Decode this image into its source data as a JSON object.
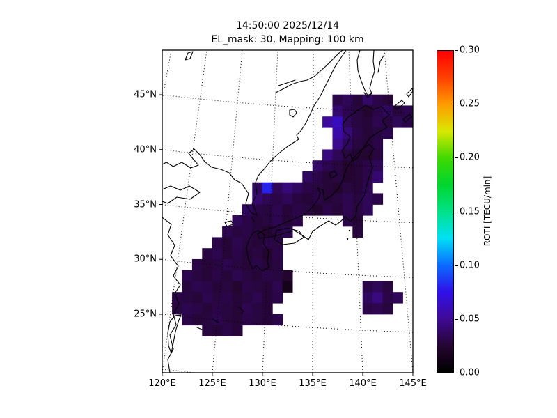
{
  "figure": {
    "title": "14:50:00 2025/12/14",
    "subtitle": "EL_mask: 30, Mapping: 100 km"
  },
  "axes": {
    "x_ticks": [
      {
        "lon": 120,
        "label": "120°E"
      },
      {
        "lon": 125,
        "label": "125°E"
      },
      {
        "lon": 130,
        "label": "130°E"
      },
      {
        "lon": 135,
        "label": "135°E"
      },
      {
        "lon": 140,
        "label": "140°E"
      },
      {
        "lon": 145,
        "label": "145°E"
      }
    ],
    "y_ticks": [
      {
        "lat": 25,
        "label": "25°N"
      },
      {
        "lat": 30,
        "label": "30°N"
      },
      {
        "lat": 35,
        "label": "35°N"
      },
      {
        "lat": 40,
        "label": "40°N"
      },
      {
        "lat": 45,
        "label": "45°N"
      }
    ],
    "grid_lons": [
      115,
      120,
      125,
      130,
      135,
      140,
      145
    ],
    "grid_lats": [
      20,
      25,
      30,
      35,
      40,
      45
    ]
  },
  "colorbar": {
    "label": "ROTI [TECU/min]",
    "vmin": 0.0,
    "vmax": 0.3,
    "ticks": [
      {
        "value": 0.0,
        "label": "0.00"
      },
      {
        "value": 0.05,
        "label": "0.05"
      },
      {
        "value": 0.1,
        "label": "0.10"
      },
      {
        "value": 0.15,
        "label": "0.15"
      },
      {
        "value": 0.2,
        "label": "0.20"
      },
      {
        "value": 0.25,
        "label": "0.25"
      },
      {
        "value": 0.3,
        "label": "0.30"
      }
    ],
    "stops": [
      [
        0.0,
        "#000000"
      ],
      [
        0.024,
        "#240530"
      ],
      [
        0.05,
        "#3f0a96"
      ],
      [
        0.075,
        "#2f10e8"
      ],
      [
        0.1,
        "#0a6cff"
      ],
      [
        0.125,
        "#00e0f5"
      ],
      [
        0.15,
        "#00e287"
      ],
      [
        0.175,
        "#00d52e"
      ],
      [
        0.2,
        "#3fd900"
      ],
      [
        0.225,
        "#d9e800"
      ],
      [
        0.25,
        "#ff9b00"
      ],
      [
        0.275,
        "#ff4000"
      ],
      [
        0.3,
        "#ff0000"
      ]
    ]
  },
  "chart_data": {
    "type": "heatmap",
    "title": "14:50:00 2025/12/14",
    "subtitle": "EL_mask: 30, Mapping: 100 km",
    "quantity": "ROTI",
    "units": "TECU/min",
    "lon_range": [
      120,
      145
    ],
    "lat_range": [
      20,
      48.5
    ],
    "value_range": [
      0.0,
      0.3
    ],
    "cell_size_deg": 1,
    "rows": [
      {
        "lat": 44,
        "lon0": 137,
        "v": [
          0.03,
          0.034,
          0.026,
          0.038,
          0.03,
          0.026
        ]
      },
      {
        "lat": 43,
        "lon0": 137,
        "v": [
          0.04,
          0.032,
          0.028,
          0.024,
          0.03,
          0.036,
          0.028,
          0.032
        ]
      },
      {
        "lat": 42,
        "lon0": 136,
        "v": [
          0.052,
          0.062,
          0.034,
          0.028,
          0.026,
          0.032,
          0.028,
          0.034,
          0.03
        ]
      },
      {
        "lat": 41,
        "lon0": 137,
        "v": [
          0.056,
          0.042,
          0.03,
          0.026,
          0.028,
          0.032
        ]
      },
      {
        "lat": 40,
        "lon0": 137,
        "v": [
          0.048,
          0.036,
          0.028,
          0.026,
          0.03
        ]
      },
      {
        "lat": 39,
        "lon0": 136,
        "v": [
          0.044,
          0.034,
          0.028,
          0.026,
          0.024,
          0.028
        ]
      },
      {
        "lat": 38,
        "lon0": 135,
        "v": [
          0.038,
          0.032,
          0.028,
          0.024,
          0.026,
          0.03,
          0.034
        ]
      },
      {
        "lat": 37,
        "lon0": 134,
        "v": [
          0.036,
          0.03,
          0.026,
          0.028,
          0.024,
          0.026,
          0.03,
          0.04
        ]
      },
      {
        "lat": 36,
        "lon0": 129,
        "v": [
          0.036,
          0.08,
          0.034,
          0.042,
          0.036,
          0.03,
          0.028,
          0.026,
          0.024,
          0.028,
          0.026,
          0.032
        ]
      },
      {
        "lat": 35,
        "lon0": 129,
        "v": [
          0.04,
          0.034,
          0.03,
          0.034,
          0.028,
          0.026,
          0.03,
          0.026,
          0.028,
          0.032,
          0.028,
          0.034,
          0.03
        ]
      },
      {
        "lat": 34,
        "lon0": 128,
        "v": [
          0.036,
          0.03,
          0.028,
          0.032,
          0.026,
          0.03,
          0.028,
          0.024,
          0.03,
          0.026,
          0.032,
          0.028,
          0.034
        ]
      },
      {
        "lat": 33,
        "lon0": 127,
        "v": [
          0.034,
          0.03,
          0.026,
          0.028,
          0.032,
          0.026,
          0.03
        ]
      },
      {
        "lat": 33,
        "lon0": 138,
        "v": [
          0.03,
          0.026
        ]
      },
      {
        "lat": 32,
        "lon0": 126,
        "v": [
          0.032,
          0.028,
          0.03,
          0.026,
          0.024,
          0.028,
          0.032
        ]
      },
      {
        "lat": 32,
        "lon0": 139,
        "v": [
          0.028
        ]
      },
      {
        "lat": 31,
        "lon0": 125,
        "v": [
          0.03,
          0.026,
          0.032,
          0.028,
          0.026,
          0.03,
          0.028
        ]
      },
      {
        "lat": 30,
        "lon0": 124,
        "v": [
          0.028,
          0.032,
          0.026,
          0.03,
          0.026,
          0.028,
          0.024,
          0.03
        ]
      },
      {
        "lat": 29,
        "lon0": 123,
        "v": [
          0.03,
          0.026,
          0.028,
          0.032,
          0.028,
          0.026,
          0.03,
          0.026,
          0.028
        ]
      },
      {
        "lat": 28,
        "lon0": 122,
        "v": [
          0.032,
          0.028,
          0.026,
          0.03,
          0.026,
          0.032,
          0.028,
          0.026,
          0.03,
          0.028,
          0.024
        ]
      },
      {
        "lat": 27,
        "lon0": 122,
        "v": [
          0.028,
          0.032,
          0.03,
          0.026,
          0.028,
          0.024,
          0.03,
          0.028,
          0.026,
          0.032,
          0.014
        ]
      },
      {
        "lat": 27,
        "lon0": 140,
        "v": [
          0.03,
          0.034,
          0.028
        ]
      },
      {
        "lat": 26,
        "lon0": 121,
        "v": [
          0.03,
          0.028,
          0.026,
          0.032,
          0.028,
          0.03,
          0.026,
          0.028,
          0.032,
          0.026,
          0.03
        ]
      },
      {
        "lat": 26,
        "lon0": 140,
        "v": [
          0.036,
          0.044,
          0.03,
          0.034
        ]
      },
      {
        "lat": 25,
        "lon0": 121,
        "v": [
          0.028,
          0.032,
          0.03,
          0.026,
          0.03,
          0.028,
          0.026,
          0.032,
          0.028,
          0.026
        ]
      },
      {
        "lat": 25,
        "lon0": 140,
        "v": [
          0.03,
          0.032,
          0.028
        ]
      },
      {
        "lat": 24,
        "lon0": 122,
        "v": [
          0.03,
          0.026,
          0.028,
          0.032,
          0.028,
          0.026,
          0.03,
          0.028,
          0.026,
          0.03
        ]
      },
      {
        "lat": 23,
        "lon0": 124,
        "v": [
          0.028,
          0.026,
          0.03,
          0.026
        ]
      }
    ]
  }
}
